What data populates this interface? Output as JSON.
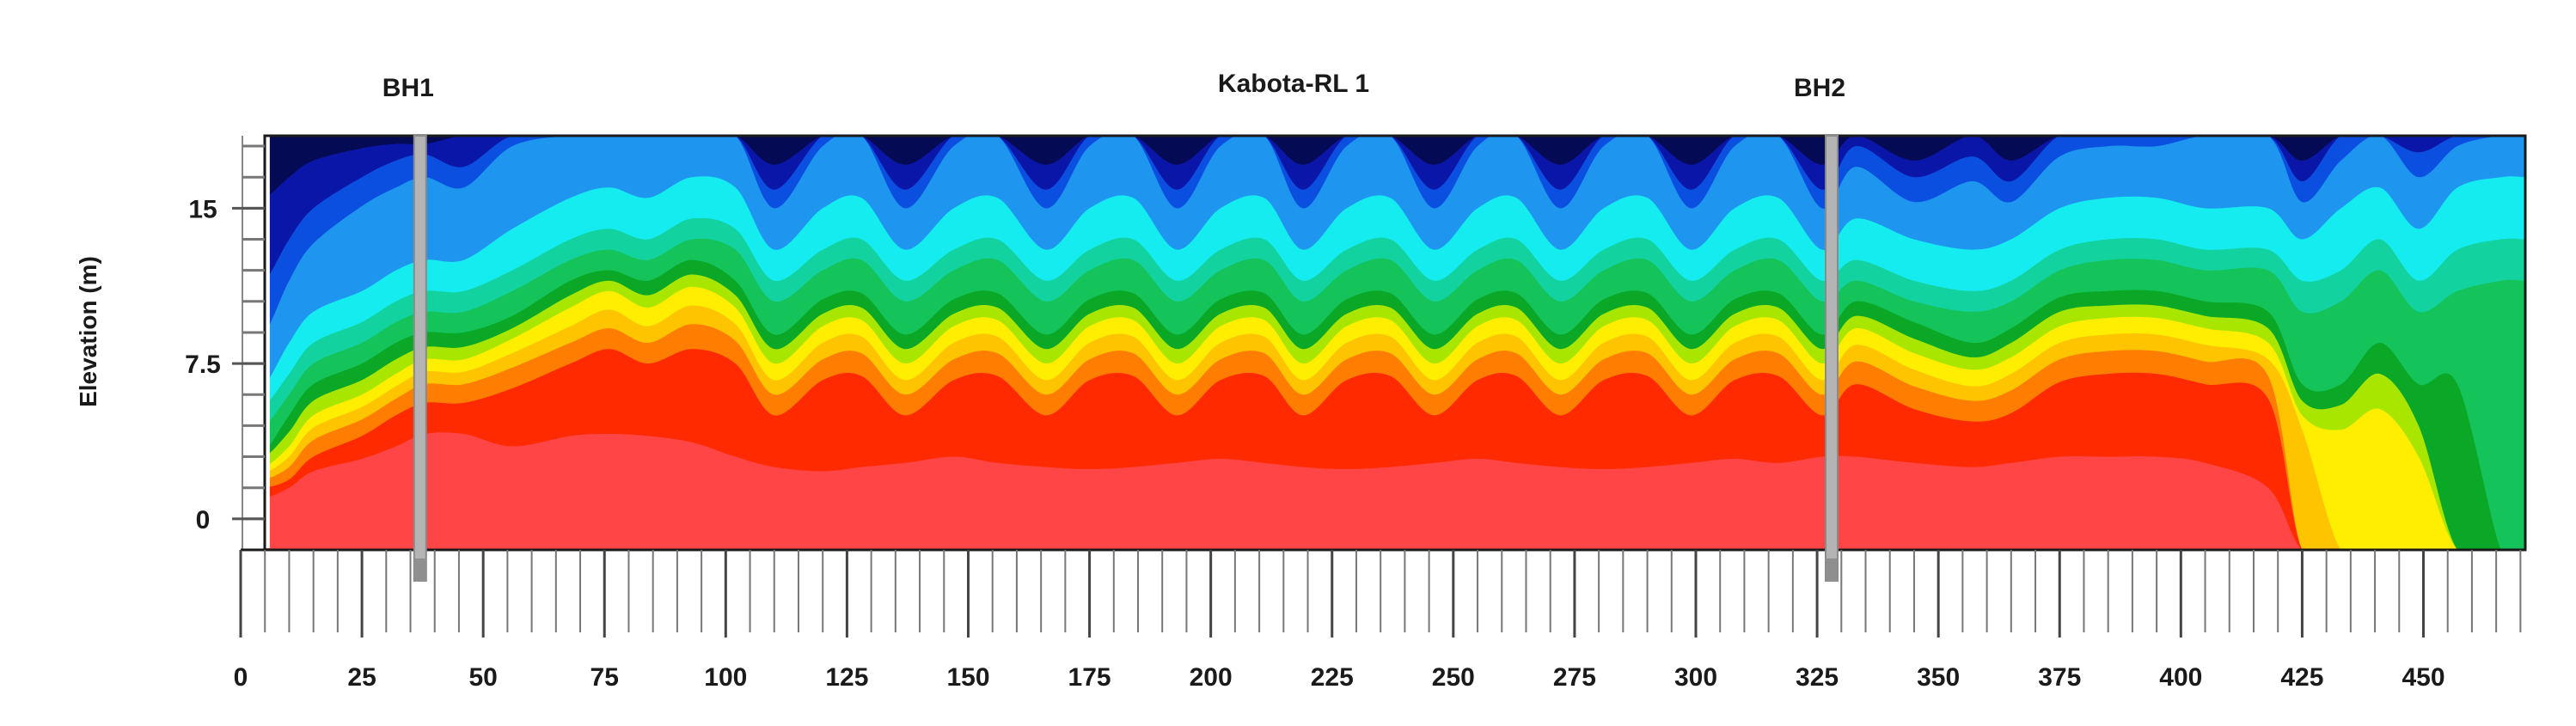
{
  "chart_data": {
    "type": "heatmap",
    "title": "Kabota-RL 1",
    "xlabel": "",
    "ylabel": "Elevation (m)",
    "xlim": [
      0,
      471
    ],
    "ylim": [
      -1.5,
      18.5
    ],
    "x_ticks": [
      {
        "value": 0,
        "label": "0"
      },
      {
        "value": 25,
        "label": "25"
      },
      {
        "value": 50,
        "label": "50"
      },
      {
        "value": 75,
        "label": "75"
      },
      {
        "value": 100,
        "label": "100"
      },
      {
        "value": 125,
        "label": "125"
      },
      {
        "value": 150,
        "label": "150"
      },
      {
        "value": 175,
        "label": "175"
      },
      {
        "value": 200,
        "label": "200"
      },
      {
        "value": 225,
        "label": "225"
      },
      {
        "value": 250,
        "label": "250"
      },
      {
        "value": 275,
        "label": "275"
      },
      {
        "value": 300,
        "label": "300"
      },
      {
        "value": 325,
        "label": "325"
      },
      {
        "value": 350,
        "label": "350"
      },
      {
        "value": 375,
        "label": "375"
      },
      {
        "value": 400,
        "label": "400"
      },
      {
        "value": 425,
        "label": "425"
      },
      {
        "value": 450,
        "label": "450"
      }
    ],
    "y_ticks": [
      {
        "value": 0,
        "label": "0"
      },
      {
        "value": 7.5,
        "label": "7.5"
      },
      {
        "value": 15,
        "label": "15"
      }
    ],
    "boreholes": [
      {
        "name": "BH1",
        "x": 37
      },
      {
        "name": "BH2",
        "x": 328
      }
    ],
    "grid": false,
    "color_scale": [
      "#050a55",
      "#0a16a8",
      "#0b4fe0",
      "#1e96f0",
      "#14ecef",
      "#12d3a0",
      "#14c35a",
      "#0aa826",
      "#a8e600",
      "#ffee00",
      "#ffc400",
      "#ff7d00",
      "#ff2a00",
      "#ff4545"
    ],
    "color_scale_note": "contour levels from low (dark blue, top) to high (red, base); no legend printed",
    "profile_stations": [
      5,
      10,
      15,
      25,
      32,
      38,
      46,
      56,
      68,
      76,
      84,
      93,
      102,
      110,
      120,
      128,
      137,
      147,
      156,
      166,
      175,
      184,
      193,
      202,
      211,
      219,
      228,
      237,
      246,
      255,
      263,
      272,
      281,
      290,
      299,
      308,
      317,
      326,
      333,
      345,
      357,
      365,
      375,
      385,
      395,
      405,
      418,
      425,
      433,
      441,
      449,
      457,
      466,
      471
    ],
    "contour_depths_below_top": [
      {
        "level": "navy",
        "depths": [
          3.0,
          2.0,
          1.2,
          0.6,
          0.4,
          0.4,
          0.0,
          0.0,
          0.0,
          0.0,
          0.0,
          0.0,
          0.0,
          1.4,
          0.0,
          0.0,
          1.4,
          0.0,
          0.0,
          1.4,
          0.0,
          0.0,
          1.4,
          0.0,
          0.0,
          1.4,
          0.0,
          0.0,
          1.4,
          0.0,
          0.0,
          1.4,
          0.0,
          0.0,
          1.4,
          0.0,
          0.0,
          1.4,
          0.0,
          1.2,
          0.0,
          1.2,
          0.0,
          0.0,
          0.0,
          0.0,
          0.0,
          1.2,
          0.0,
          0.0,
          0.0,
          0.0,
          0.0,
          0.0
        ]
      },
      {
        "level": "blue",
        "depths": [
          7.0,
          5.0,
          3.5,
          2.0,
          1.2,
          0.9,
          1.5,
          0.0,
          0.0,
          0.0,
          0.0,
          0.0,
          0.0,
          2.6,
          0.0,
          0.0,
          2.6,
          0.0,
          0.0,
          2.6,
          0.0,
          0.0,
          2.6,
          0.0,
          0.0,
          2.6,
          0.0,
          0.0,
          2.6,
          0.0,
          0.0,
          2.6,
          0.0,
          0.0,
          2.6,
          0.0,
          0.0,
          2.6,
          0.5,
          2.0,
          1.0,
          2.2,
          0.0,
          0.0,
          0.0,
          0.0,
          0.0,
          2.2,
          0.0,
          0.0,
          0.8,
          0.0,
          0.0,
          0.0
        ]
      },
      {
        "level": "lightblue",
        "depths": [
          9.5,
          7.0,
          5.2,
          3.4,
          2.5,
          2.0,
          2.5,
          0.5,
          0.0,
          0.0,
          0.0,
          0.0,
          0.0,
          3.5,
          0.5,
          0.0,
          3.5,
          0.5,
          0.0,
          3.5,
          0.5,
          0.0,
          3.5,
          0.5,
          0.0,
          3.5,
          0.5,
          0.0,
          3.5,
          0.5,
          0.0,
          3.5,
          0.5,
          0.0,
          3.5,
          0.5,
          0.0,
          3.5,
          1.5,
          3.2,
          2.2,
          3.2,
          1.0,
          0.5,
          0.5,
          0.0,
          0.0,
          3.2,
          1.2,
          0.0,
          2.0,
          0.5,
          0.0,
          0.0
        ]
      },
      {
        "level": "cyan",
        "depths": [
          12.0,
          10.0,
          8.5,
          7.5,
          6.5,
          6.0,
          6.0,
          4.5,
          3.0,
          2.5,
          3.0,
          2.0,
          2.5,
          5.5,
          3.5,
          3.0,
          5.5,
          3.5,
          3.0,
          5.5,
          3.5,
          3.0,
          5.5,
          3.5,
          3.0,
          5.5,
          3.5,
          3.0,
          5.5,
          3.5,
          3.0,
          5.5,
          3.5,
          3.0,
          5.5,
          3.5,
          3.0,
          5.5,
          4.0,
          5.0,
          5.5,
          5.0,
          3.5,
          3.0,
          3.0,
          3.5,
          3.5,
          5.0,
          3.5,
          2.5,
          4.5,
          2.5,
          2.0,
          2.0
        ]
      },
      {
        "level": "teal",
        "depths": [
          13.0,
          11.5,
          10.0,
          9.0,
          8.0,
          7.5,
          7.5,
          6.5,
          5.0,
          4.5,
          5.0,
          4.0,
          4.5,
          7.0,
          5.5,
          5.0,
          7.0,
          5.5,
          5.0,
          7.0,
          5.5,
          5.0,
          7.0,
          5.5,
          5.0,
          7.0,
          5.5,
          5.0,
          7.0,
          5.5,
          5.0,
          7.0,
          5.5,
          5.0,
          7.0,
          5.5,
          5.0,
          7.0,
          6.0,
          7.0,
          7.5,
          7.0,
          5.5,
          5.0,
          5.0,
          5.5,
          5.5,
          7.0,
          6.5,
          5.0,
          7.0,
          5.5,
          5.0,
          5.0
        ]
      },
      {
        "level": "green",
        "depths": [
          14.0,
          12.5,
          11.0,
          10.0,
          9.0,
          8.5,
          8.5,
          7.5,
          6.0,
          5.5,
          6.0,
          5.0,
          5.5,
          8.0,
          6.5,
          6.0,
          8.0,
          6.5,
          6.0,
          8.0,
          6.5,
          6.0,
          8.0,
          6.5,
          6.0,
          8.0,
          6.5,
          6.0,
          8.0,
          6.5,
          6.0,
          8.0,
          6.5,
          6.0,
          8.0,
          6.5,
          6.0,
          8.0,
          7.0,
          8.0,
          8.5,
          8.0,
          6.5,
          6.0,
          6.0,
          6.5,
          6.5,
          8.5,
          8.0,
          6.5,
          8.5,
          7.5,
          7.0,
          7.0
        ]
      },
      {
        "level": "darkgreen",
        "depths": [
          15.2,
          13.5,
          12.0,
          11.0,
          10.0,
          9.5,
          9.5,
          8.7,
          7.0,
          6.5,
          7.0,
          6.0,
          7.0,
          9.6,
          7.9,
          7.6,
          9.6,
          7.9,
          7.6,
          9.6,
          7.9,
          7.6,
          9.6,
          7.9,
          7.6,
          9.6,
          7.9,
          7.6,
          9.6,
          7.9,
          7.6,
          9.6,
          7.9,
          7.6,
          9.6,
          7.9,
          7.6,
          9.6,
          8.0,
          9.0,
          10.0,
          9.3,
          7.8,
          7.5,
          7.5,
          8.0,
          8.5,
          12.0,
          12.0,
          10.0,
          12.0,
          12.0,
          20.0,
          20.0
        ]
      },
      {
        "level": "lime",
        "depths": [
          15.5,
          14.3,
          12.8,
          11.8,
          10.8,
          10.2,
          10.2,
          9.3,
          7.7,
          7.0,
          7.7,
          6.7,
          7.7,
          10.3,
          8.6,
          8.3,
          10.3,
          8.6,
          8.3,
          10.3,
          8.6,
          8.3,
          10.3,
          8.6,
          8.3,
          10.3,
          8.6,
          8.3,
          10.3,
          8.6,
          8.3,
          10.3,
          8.6,
          8.3,
          10.3,
          8.6,
          8.3,
          10.3,
          8.7,
          9.8,
          10.7,
          10.0,
          8.5,
          8.2,
          8.2,
          8.7,
          9.3,
          12.8,
          13.0,
          11.5,
          14.0,
          20.0,
          20.0,
          20.0
        ]
      },
      {
        "level": "yellow",
        "depths": [
          16.0,
          15.0,
          13.5,
          12.5,
          11.5,
          10.8,
          10.8,
          9.8,
          8.3,
          7.5,
          8.3,
          7.3,
          8.3,
          11.0,
          9.2,
          8.9,
          11.0,
          9.2,
          8.9,
          11.0,
          9.2,
          8.9,
          11.0,
          9.2,
          8.9,
          11.0,
          9.2,
          8.9,
          11.0,
          9.2,
          8.9,
          11.0,
          9.2,
          8.9,
          11.0,
          9.2,
          8.9,
          11.0,
          9.3,
          10.5,
          11.3,
          10.7,
          9.2,
          8.8,
          8.8,
          9.3,
          10.0,
          13.5,
          14.2,
          13.2,
          15.5,
          20.0,
          20.0,
          20.0
        ]
      },
      {
        "level": "gold",
        "depths": [
          16.3,
          15.5,
          14.1,
          13.1,
          12.1,
          11.4,
          11.4,
          10.5,
          9.2,
          8.4,
          9.2,
          8.2,
          9.1,
          11.8,
          10.0,
          9.7,
          11.8,
          10.0,
          9.7,
          11.8,
          10.0,
          9.7,
          11.8,
          10.0,
          9.7,
          11.8,
          10.0,
          9.7,
          11.8,
          10.0,
          9.7,
          11.8,
          10.0,
          9.7,
          11.8,
          10.0,
          9.7,
          11.8,
          10.1,
          11.3,
          12.1,
          11.5,
          10.0,
          9.6,
          9.6,
          10.1,
          10.8,
          14.2,
          20.0,
          20.0,
          20.0,
          20.0,
          20.0,
          20.0
        ]
      },
      {
        "level": "orange",
        "depths": [
          16.6,
          16.0,
          14.7,
          13.7,
          12.7,
          12.0,
          12.0,
          11.2,
          10.0,
          9.3,
          10.0,
          9.1,
          9.9,
          12.5,
          10.8,
          10.5,
          12.5,
          10.8,
          10.5,
          12.5,
          10.8,
          10.5,
          12.5,
          10.8,
          10.5,
          12.5,
          10.8,
          10.5,
          12.5,
          10.8,
          10.5,
          12.5,
          10.8,
          10.5,
          12.5,
          10.8,
          10.5,
          12.5,
          10.9,
          12.1,
          12.8,
          12.3,
          10.8,
          10.4,
          10.4,
          10.9,
          11.6,
          20.0,
          20.0,
          20.0,
          20.0,
          20.0,
          20.0,
          20.0
        ]
      },
      {
        "level": "red",
        "depths": [
          17.0,
          16.6,
          15.5,
          14.5,
          13.5,
          12.9,
          12.9,
          12.2,
          11.0,
          10.3,
          11.0,
          10.3,
          11.0,
          13.5,
          11.8,
          11.6,
          13.5,
          11.8,
          11.6,
          13.5,
          11.8,
          11.6,
          13.5,
          11.8,
          11.6,
          13.5,
          11.8,
          11.6,
          13.5,
          11.8,
          11.6,
          13.5,
          11.8,
          11.6,
          13.5,
          11.8,
          11.6,
          13.5,
          12.0,
          13.2,
          13.8,
          13.4,
          11.9,
          11.5,
          11.5,
          12.0,
          12.7,
          20.0,
          20.0,
          20.0,
          20.0,
          20.0,
          20.0,
          20.0
        ]
      },
      {
        "level": "salmon",
        "depths": [
          17.5,
          17.0,
          16.2,
          15.6,
          15.0,
          14.4,
          14.4,
          15.0,
          14.5,
          14.4,
          14.5,
          14.8,
          15.5,
          16.0,
          16.2,
          16.0,
          15.8,
          15.5,
          15.8,
          16.0,
          16.1,
          16.0,
          15.8,
          15.6,
          15.8,
          16.0,
          16.1,
          16.0,
          15.8,
          15.6,
          15.8,
          16.0,
          16.1,
          16.0,
          15.8,
          15.6,
          15.8,
          15.5,
          15.5,
          15.8,
          16.0,
          15.8,
          15.5,
          15.5,
          15.5,
          15.8,
          17.0,
          20.0,
          20.0,
          20.0,
          20.0,
          20.0,
          20.0,
          20.0
        ]
      }
    ]
  }
}
